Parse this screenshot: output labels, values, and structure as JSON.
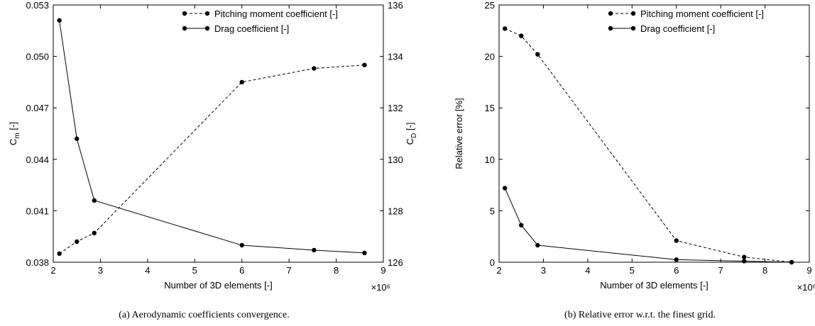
{
  "chart_data": [
    {
      "type": "line",
      "x": [
        2.13,
        2.5,
        2.87,
        6.0,
        7.53,
        8.6
      ],
      "series": [
        {
          "name": "Pitching moment coefficient [-]",
          "color": "#000000",
          "dashed": true,
          "values": [
            0.0385,
            0.0392,
            0.0397,
            0.0485,
            0.0493,
            0.0495
          ]
        },
        {
          "name": "Drag coefficient [-]",
          "color": "#000000",
          "dashed": false,
          "axis": "y2",
          "values": [
            135.4,
            130.8,
            128.4,
            126.66,
            126.47,
            126.36
          ]
        }
      ],
      "xlim": [
        2,
        9
      ],
      "xticks": [
        2,
        3,
        4,
        5,
        6,
        7,
        8,
        9
      ],
      "ylim": [
        0.038,
        0.053
      ],
      "yticks": [
        0.038,
        0.041,
        0.044,
        0.047,
        {
          "value": 0.05,
          "label": "0.050"
        },
        0.053
      ],
      "y2lim": [
        126,
        136
      ],
      "y2ticks": [
        126,
        128,
        130,
        132,
        134,
        136
      ],
      "xlabel": "Number of 3D elements [-]",
      "x_multiplier": "×10⁶",
      "ylabel": {
        "symbol": "C",
        "subscript": "m",
        "unit": " [-]"
      },
      "y2label": {
        "symbol": "C",
        "subscript": "D",
        "unit": " [-]"
      },
      "legend": "upper right",
      "caption": "(a)  Aerodynamic coefficients convergence."
    },
    {
      "type": "line",
      "x": [
        2.13,
        2.5,
        2.87,
        6.0,
        7.53,
        8.6
      ],
      "series": [
        {
          "name": "Pitching moment coefficient [-]",
          "color": "#000000",
          "dashed": true,
          "values": [
            22.7,
            22.0,
            20.2,
            2.1,
            0.5,
            0
          ]
        },
        {
          "name": "Drag coefficient [-]",
          "color": "#000000",
          "dashed": false,
          "values": [
            7.2,
            3.6,
            1.65,
            0.25,
            0.1,
            0
          ]
        }
      ],
      "xlim": [
        2,
        9
      ],
      "xticks": [
        2,
        3,
        4,
        5,
        6,
        7,
        8,
        9
      ],
      "ylim": [
        0,
        25
      ],
      "yticks": [
        0,
        5,
        10,
        15,
        20,
        25
      ],
      "xlabel": "Number of 3D elements [-]",
      "x_multiplier": "×10⁶",
      "ylabel": {
        "symbol": "Relative error [%]"
      },
      "legend": "upper right",
      "caption": "(b)  Relative error w.r.t. the finest grid."
    }
  ]
}
